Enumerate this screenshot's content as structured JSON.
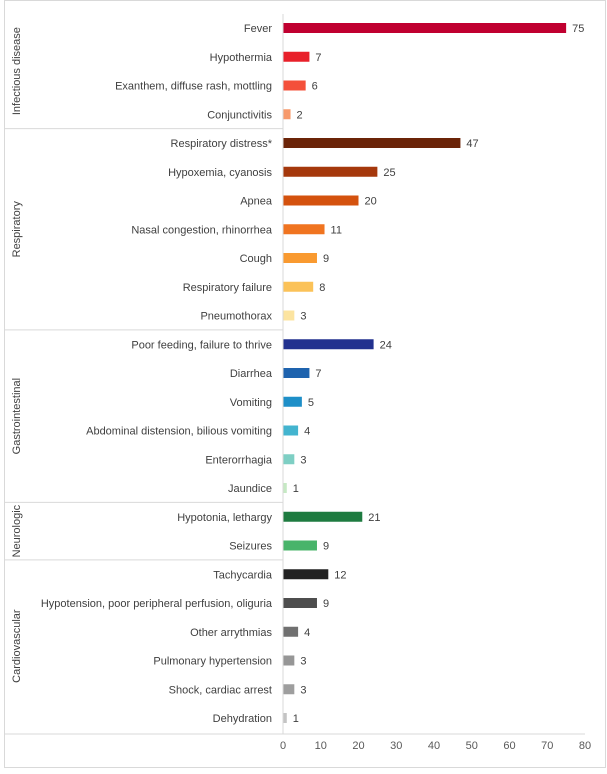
{
  "chart_data": {
    "type": "bar",
    "orientation": "horizontal",
    "xlim": [
      0,
      80
    ],
    "x_ticks": [
      "0",
      "10",
      "20",
      "30",
      "40",
      "50",
      "60",
      "70",
      "80"
    ],
    "grid": false,
    "groups": [
      {
        "name": "Infectious disease",
        "items": [
          {
            "label": "Fever",
            "value": 75,
            "value_label": "75",
            "color": "#C00030"
          },
          {
            "label": "Hypothermia",
            "value": 7,
            "value_label": "7",
            "color": "#E8202A"
          },
          {
            "label": "Exanthem, diffuse rash, mottling",
            "value": 6,
            "value_label": "6",
            "color": "#F4503A"
          },
          {
            "label": "Conjunctivitis",
            "value": 2,
            "value_label": "2",
            "color": "#F79A6C"
          }
        ]
      },
      {
        "name": "Respiratory",
        "items": [
          {
            "label": "Respiratory distress*",
            "value": 47,
            "value_label": "47",
            "color": "#6B2408"
          },
          {
            "label": "Hypoxemia, cyanosis",
            "value": 25,
            "value_label": "25",
            "color": "#A5380C"
          },
          {
            "label": "Apnea",
            "value": 20,
            "value_label": "20",
            "color": "#D4520E"
          },
          {
            "label": "Nasal congestion, rhinorrhea",
            "value": 11,
            "value_label": "11",
            "color": "#F07420"
          },
          {
            "label": "Cough",
            "value": 9,
            "value_label": "9",
            "color": "#F99A30"
          },
          {
            "label": "Respiratory failure",
            "value": 8,
            "value_label": "8",
            "color": "#FBC258"
          },
          {
            "label": "Pneumothorax",
            "value": 3,
            "value_label": "3",
            "color": "#FCE4A0"
          }
        ]
      },
      {
        "name": "Gastrointestinal",
        "items": [
          {
            "label": "Poor feeding, failure to thrive",
            "value": 24,
            "value_label": "24",
            "color": "#22318F"
          },
          {
            "label": "Diarrhea",
            "value": 7,
            "value_label": "7",
            "color": "#1E63AE"
          },
          {
            "label": "Vomiting",
            "value": 5,
            "value_label": "5",
            "color": "#1E8FC8"
          },
          {
            "label": "Abdominal distension, bilious vomiting",
            "value": 4,
            "value_label": "4",
            "color": "#43B4CF"
          },
          {
            "label": "Enterorrhagia",
            "value": 3,
            "value_label": "3",
            "color": "#7ECFC4"
          },
          {
            "label": "Jaundice",
            "value": 1,
            "value_label": "1",
            "color": "#C6E9C4"
          }
        ]
      },
      {
        "name": "Neurologic",
        "items": [
          {
            "label": "Hypotonia, lethargy",
            "value": 21,
            "value_label": "21",
            "color": "#1E7B40"
          },
          {
            "label": "Seizures",
            "value": 9,
            "value_label": "9",
            "color": "#48B46A"
          }
        ]
      },
      {
        "name": "Cardiovascular",
        "items": [
          {
            "label": "Tachycardia",
            "value": 12,
            "value_label": "12",
            "color": "#222222"
          },
          {
            "label": "Hypotension, poor peripheral perfusion, oliguria",
            "value": 9,
            "value_label": "9",
            "color": "#4D4D4D"
          },
          {
            "label": "Other arrythmias",
            "value": 4,
            "value_label": "4",
            "color": "#707070"
          },
          {
            "label": "Pulmonary hypertension",
            "value": 3,
            "value_label": "3",
            "color": "#969696"
          },
          {
            "label": "Shock, cardiac arrest",
            "value": 3,
            "value_label": "3",
            "color": "#9E9E9E"
          },
          {
            "label": "Dehydration",
            "value": 1,
            "value_label": "1",
            "color": "#C4C4C4"
          }
        ]
      }
    ]
  }
}
